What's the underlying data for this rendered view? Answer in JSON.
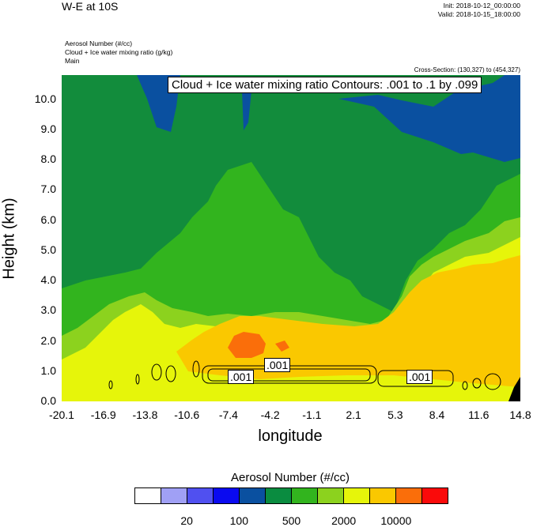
{
  "header": {
    "title": "W-E at 10S",
    "init": "Init: 2018-10-12_00:00:00",
    "valid": "Valid: 2018-10-15_18:00:00",
    "fields": [
      "Aerosol Number   (#/cc)",
      "Cloud + Ice water mixing ratio   (g/kg)",
      "Main"
    ],
    "cross_section": "Cross-Section: (130,327) to (454,327)"
  },
  "chart_data": {
    "type": "heatmap",
    "title": "",
    "xlabel": "longitude",
    "ylabel": "Height (km)",
    "x_ticks": [
      "-20.1",
      "-16.9",
      "-13.8",
      "-10.6",
      "-7.4",
      "-4.2",
      "-1.1",
      "2.1",
      "5.3",
      "8.4",
      "11.6",
      "14.8"
    ],
    "y_ticks": [
      "0.0",
      "1.0",
      "2.0",
      "3.0",
      "4.0",
      "5.0",
      "6.0",
      "7.0",
      "8.0",
      "9.0",
      "10.0"
    ],
    "xlim": [
      -20.1,
      14.8
    ],
    "ylim": [
      0,
      10.8
    ],
    "contour_label": "Cloud + Ice water mixing ratio Contours: .001 to .1 by .099",
    "contour_value_labels": [
      ".001",
      ".001",
      ".001"
    ],
    "colorbar": {
      "title": "Aerosol Number  (#/cc)",
      "tick_labels": [
        "20",
        "100",
        "500",
        "2000",
        "10000"
      ],
      "colors": [
        "#ffffff",
        "#a0a0f5",
        "#5050f0",
        "#0a0af0",
        "#0a50a0",
        "#0a8c40",
        "#32b41e",
        "#8cd21e",
        "#e6f50a",
        "#fac800",
        "#fa6e0a",
        "#fa0a0a"
      ]
    },
    "field_colors": {
      "dark_green": "#128c3c",
      "blue": "#0a50a0",
      "green": "#32b41e",
      "light_green": "#8cd21e",
      "yellow": "#e6f50a",
      "orange": "#fac800",
      "red_orange": "#fa6e0a",
      "black": "#000000"
    }
  }
}
